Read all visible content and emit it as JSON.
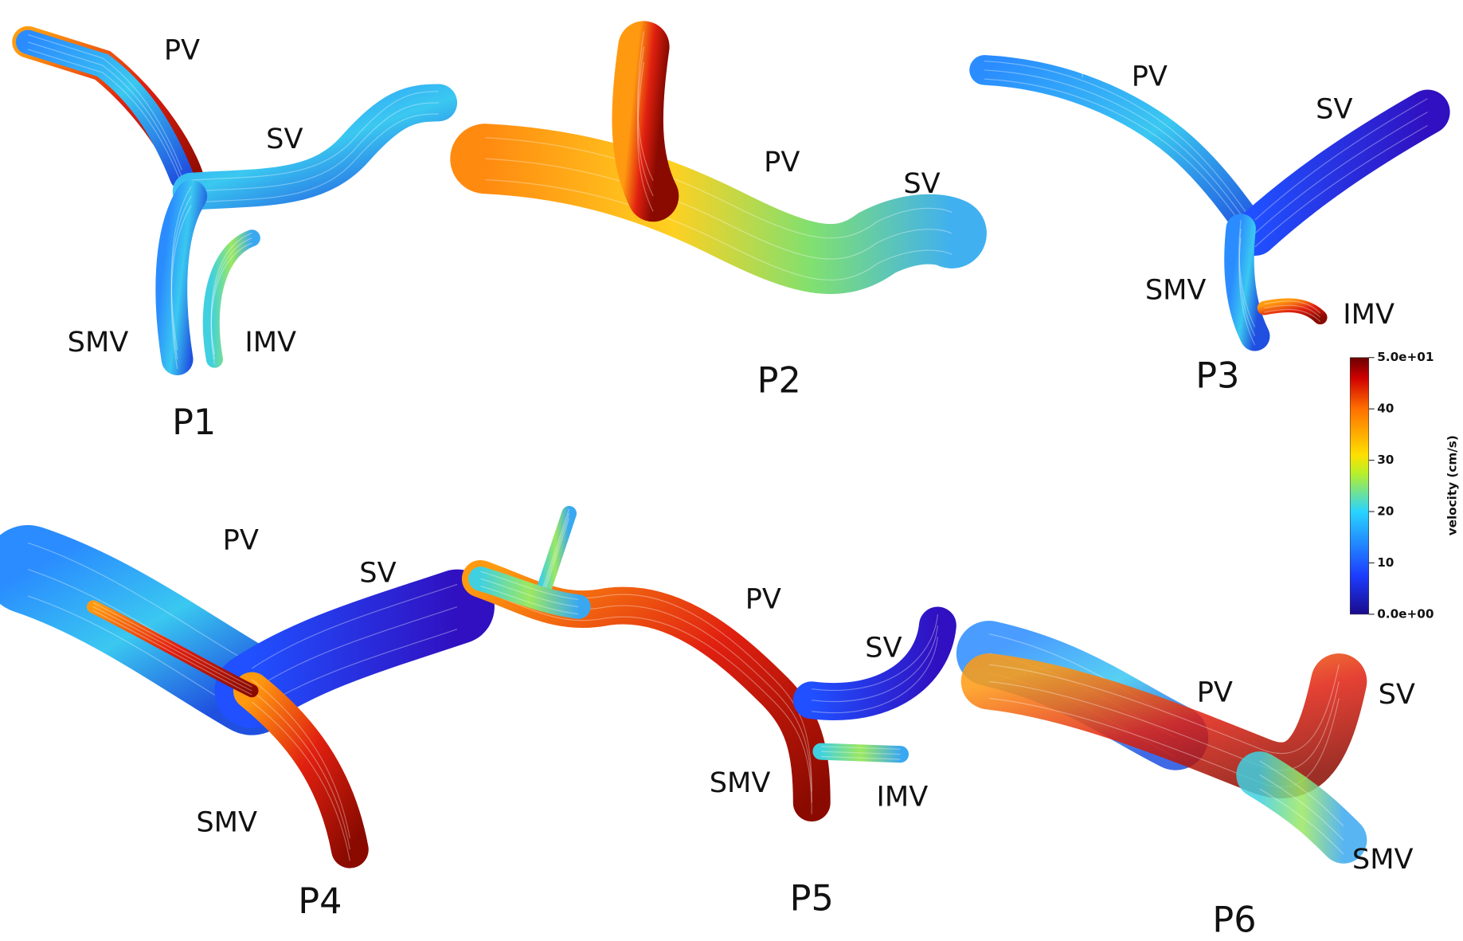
{
  "panels": [
    {
      "title": "P1",
      "labels": [
        "PV",
        "SV",
        "SMV",
        "IMV"
      ]
    },
    {
      "title": "P2",
      "labels": [
        "PV",
        "SV"
      ]
    },
    {
      "title": "P3",
      "labels": [
        "PV",
        "SV",
        "SMV",
        "IMV"
      ]
    },
    {
      "title": "P4",
      "labels": [
        "PV",
        "SV",
        "SMV"
      ]
    },
    {
      "title": "P5",
      "labels": [
        "PV",
        "SV",
        "SMV",
        "IMV"
      ]
    },
    {
      "title": "P6",
      "labels": [
        "PV",
        "SV",
        "SMV"
      ]
    }
  ],
  "colorbar": {
    "label": "velocity (cm/s)",
    "lim": [
      0,
      50
    ],
    "ticks": [
      {
        "value": 0,
        "label": "0.0e+00"
      },
      10,
      20,
      30,
      40,
      {
        "value": 50,
        "label": "5.0e+01"
      }
    ]
  }
}
